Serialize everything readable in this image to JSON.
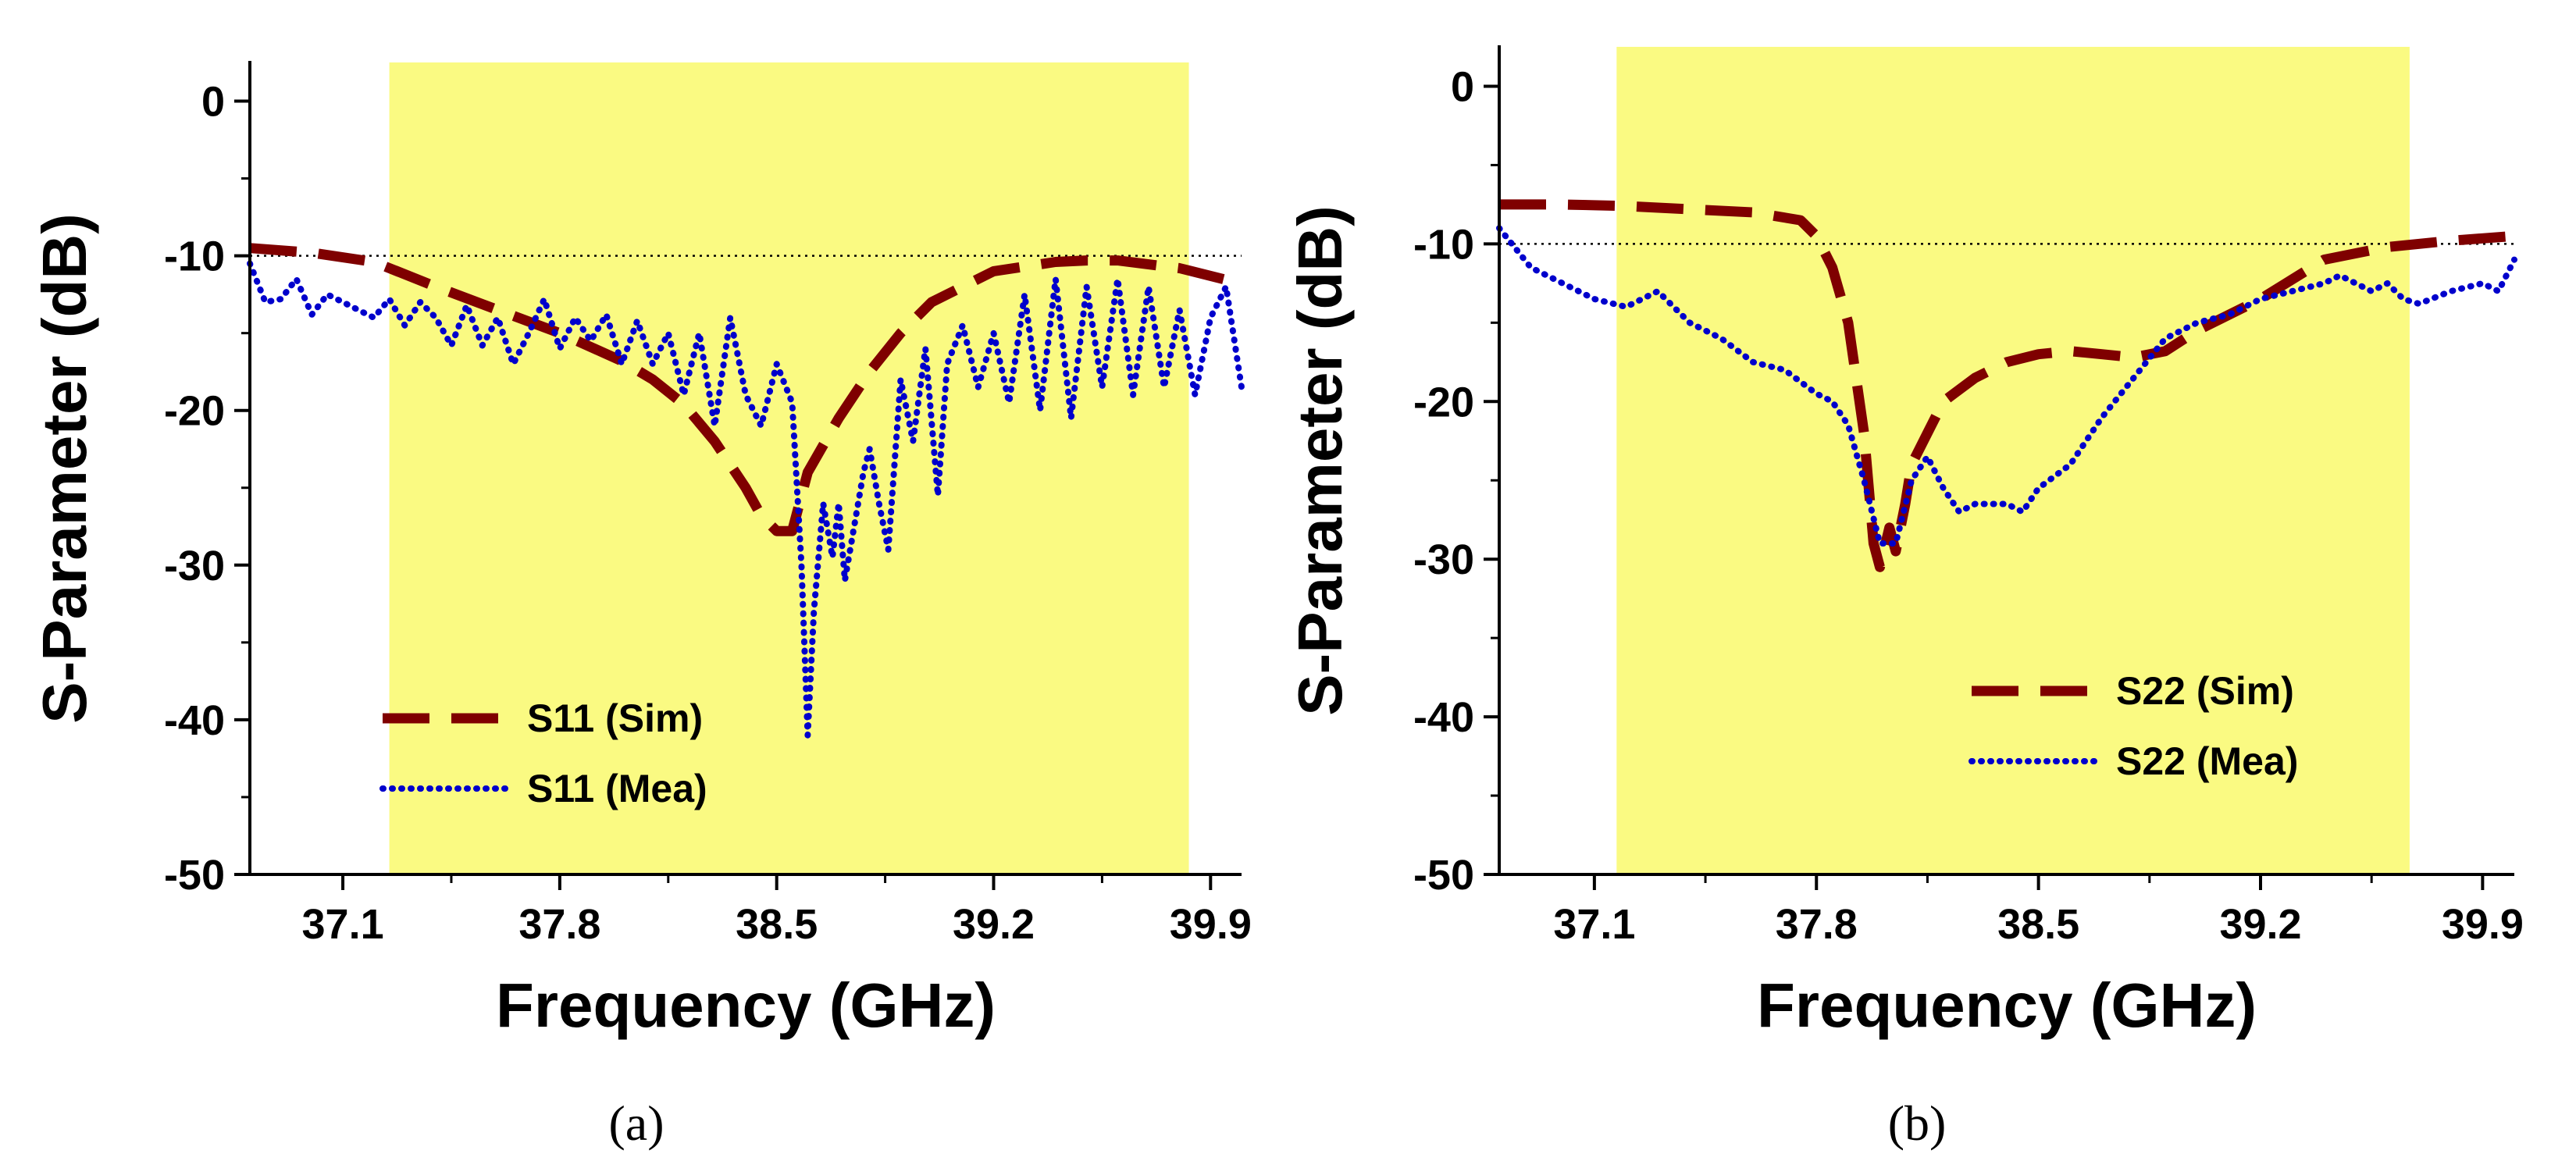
{
  "chart_data": [
    {
      "type": "line",
      "caption": "(a)",
      "xlabel": "Frequency (GHz)",
      "ylabel": "S-Parameter (dB)",
      "xlim": [
        36.8,
        40.0
      ],
      "ylim": [
        -50,
        2.5
      ],
      "xticks": [
        37.1,
        37.8,
        38.5,
        39.2,
        39.9
      ],
      "xtick_labels": [
        "37.1",
        "37.8",
        "38.5",
        "39.2",
        "39.9"
      ],
      "yticks": [
        0,
        -10,
        -20,
        -30,
        -40,
        -50
      ],
      "ytick_labels": [
        "0",
        "-10",
        "-20",
        "-30",
        "-40",
        "-50"
      ],
      "band": [
        37.25,
        39.83
      ],
      "band_color": "#fafa82",
      "reference_line": -10,
      "legend_position": "lower-left",
      "series": [
        {
          "name": "S11 (Sim)",
          "style": "dashed",
          "color": "#7f0000",
          "x": [
            36.8,
            37.0,
            37.2,
            37.4,
            37.6,
            37.8,
            38.0,
            38.1,
            38.2,
            38.3,
            38.4,
            38.45,
            38.5,
            38.55,
            38.6,
            38.7,
            38.8,
            38.9,
            39.0,
            39.2,
            39.4,
            39.5,
            39.6,
            39.8,
            40.0
          ],
          "y": [
            -9.5,
            -9.8,
            -10.4,
            -12.0,
            -13.5,
            -15.0,
            -16.8,
            -18.0,
            -19.6,
            -22.0,
            -25.0,
            -26.8,
            -27.8,
            -27.8,
            -24.0,
            -20.5,
            -17.5,
            -15.0,
            -13.0,
            -11.0,
            -10.4,
            -10.3,
            -10.3,
            -10.8,
            -11.8
          ]
        },
        {
          "name": "S11 (Mea)",
          "style": "dotted",
          "color": "#0000cc",
          "x": [
            36.8,
            36.85,
            36.9,
            36.95,
            37.0,
            37.05,
            37.1,
            37.15,
            37.2,
            37.25,
            37.3,
            37.35,
            37.4,
            37.45,
            37.5,
            37.55,
            37.6,
            37.65,
            37.7,
            37.75,
            37.8,
            37.85,
            37.9,
            37.95,
            38.0,
            38.05,
            38.1,
            38.15,
            38.2,
            38.25,
            38.3,
            38.35,
            38.4,
            38.45,
            38.5,
            38.55,
            38.58,
            38.6,
            38.62,
            38.65,
            38.68,
            38.7,
            38.72,
            38.75,
            38.78,
            38.8,
            38.83,
            38.86,
            38.9,
            38.94,
            38.98,
            39.02,
            39.05,
            39.1,
            39.15,
            39.2,
            39.25,
            39.3,
            39.35,
            39.4,
            39.45,
            39.5,
            39.55,
            39.6,
            39.65,
            39.7,
            39.75,
            39.8,
            39.85,
            39.9,
            39.95,
            40.0
          ],
          "y": [
            -10.5,
            -13.0,
            -12.8,
            -11.5,
            -13.8,
            -12.5,
            -13.0,
            -13.5,
            -14.0,
            -12.8,
            -14.5,
            -13.0,
            -14.0,
            -15.8,
            -13.2,
            -15.8,
            -14.0,
            -17.0,
            -15.0,
            -12.8,
            -16.0,
            -14.0,
            -15.5,
            -13.8,
            -17.0,
            -14.2,
            -17.0,
            -15.0,
            -19.0,
            -15.0,
            -21.0,
            -14.0,
            -19.0,
            -21.0,
            -17.0,
            -19.5,
            -30.0,
            -41.0,
            -33.0,
            -26.0,
            -29.5,
            -26.0,
            -31.0,
            -27.5,
            -24.0,
            -22.5,
            -26.0,
            -29.0,
            -18.0,
            -22.0,
            -16.0,
            -25.5,
            -17.0,
            -14.5,
            -18.5,
            -15.0,
            -19.5,
            -12.5,
            -20.0,
            -11.5,
            -20.5,
            -12.0,
            -18.5,
            -11.5,
            -19.0,
            -12.0,
            -18.5,
            -13.5,
            -19.0,
            -14.0,
            -12.0,
            -18.5
          ]
        }
      ]
    },
    {
      "type": "line",
      "caption": "(b)",
      "xlabel": "Frequency (GHz)",
      "ylabel": "S-Parameter (dB)",
      "xlim": [
        36.8,
        40.0
      ],
      "ylim": [
        -50,
        2.5
      ],
      "xticks": [
        37.1,
        37.8,
        38.5,
        39.2,
        39.9
      ],
      "xtick_labels": [
        "37.1",
        "37.8",
        "38.5",
        "39.2",
        "39.9"
      ],
      "yticks": [
        0,
        -10,
        -20,
        -30,
        -40,
        -50
      ],
      "ytick_labels": [
        "0",
        "-10",
        "-20",
        "-30",
        "-40",
        "-50"
      ],
      "band": [
        37.17,
        39.67
      ],
      "band_color": "#fafa82",
      "reference_line": -10,
      "legend_position": "lower-right",
      "series": [
        {
          "name": "S22 (Sim)",
          "style": "dashed",
          "color": "#7f0000",
          "x": [
            36.8,
            37.0,
            37.2,
            37.4,
            37.6,
            37.75,
            37.8,
            37.85,
            37.9,
            37.95,
            37.98,
            38.0,
            38.03,
            38.05,
            38.08,
            38.1,
            38.15,
            38.2,
            38.3,
            38.4,
            38.5,
            38.6,
            38.7,
            38.8,
            38.9,
            39.0,
            39.2,
            39.4,
            39.6,
            39.8,
            40.0
          ],
          "y": [
            -7.5,
            -7.5,
            -7.6,
            -7.8,
            -8.0,
            -8.5,
            -9.5,
            -11.5,
            -15.0,
            -22.0,
            -29.0,
            -30.5,
            -28.0,
            -29.5,
            -26.5,
            -24.0,
            -22.0,
            -20.0,
            -18.5,
            -17.5,
            -17.0,
            -16.8,
            -17.0,
            -17.2,
            -16.8,
            -15.5,
            -13.5,
            -11.0,
            -10.2,
            -9.8,
            -9.5
          ]
        },
        {
          "name": "S22 (Mea)",
          "style": "dotted",
          "color": "#0000cc",
          "x": [
            36.8,
            36.9,
            37.0,
            37.1,
            37.2,
            37.3,
            37.4,
            37.5,
            37.6,
            37.7,
            37.8,
            37.85,
            37.9,
            37.95,
            38.0,
            38.05,
            38.1,
            38.15,
            38.2,
            38.25,
            38.3,
            38.4,
            38.45,
            38.5,
            38.6,
            38.7,
            38.8,
            38.9,
            39.0,
            39.1,
            39.2,
            39.3,
            39.4,
            39.45,
            39.5,
            39.55,
            39.6,
            39.65,
            39.7,
            39.8,
            39.9,
            39.95,
            40.0
          ],
          "y": [
            -9.0,
            -11.5,
            -12.5,
            -13.5,
            -14.0,
            -13.0,
            -15.0,
            -16.0,
            -17.5,
            -18.0,
            -19.5,
            -20.0,
            -21.5,
            -25.0,
            -29.0,
            -29.0,
            -25.0,
            -23.5,
            -25.5,
            -27.0,
            -26.5,
            -26.5,
            -27.0,
            -25.5,
            -24.0,
            -21.0,
            -18.5,
            -16.0,
            -15.0,
            -14.5,
            -13.5,
            -13.0,
            -12.5,
            -12.0,
            -12.5,
            -13.0,
            -12.5,
            -13.5,
            -13.8,
            -13.0,
            -12.5,
            -13.0,
            -11.0
          ]
        }
      ]
    }
  ]
}
